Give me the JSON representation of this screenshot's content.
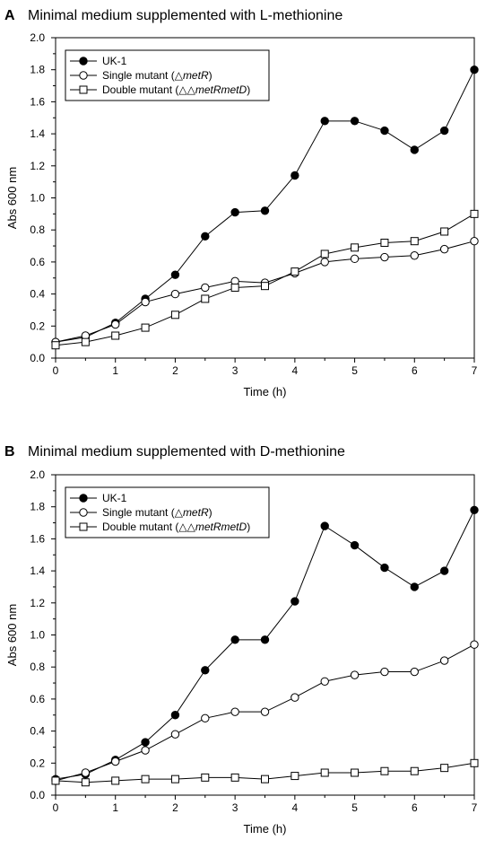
{
  "chart_data": [
    {
      "panel": "A",
      "type": "line",
      "title": "Minimal medium supplemented with L-methionine",
      "xlabel": "Time (h)",
      "ylabel": "Abs 600 nm",
      "xlim": [
        0,
        7
      ],
      "ylim": [
        0,
        2.0
      ],
      "x_ticks": [
        "0",
        "1",
        "2",
        "3",
        "4",
        "5",
        "6",
        "7"
      ],
      "y_ticks": [
        "0.0",
        "0.2",
        "0.4",
        "0.6",
        "0.8",
        "1.0",
        "1.2",
        "1.4",
        "1.6",
        "1.8",
        "2.0"
      ],
      "x": [
        0,
        0.5,
        1,
        1.5,
        2,
        2.5,
        3,
        3.5,
        4,
        4.5,
        5,
        5.5,
        6,
        6.5,
        7
      ],
      "legend_position": "top-left",
      "grid": false,
      "series": [
        {
          "legend_prefix": "UK-1",
          "legend_italic": "",
          "legend_suffix": "",
          "marker": "filled-circle",
          "values": [
            0.1,
            0.13,
            0.22,
            0.37,
            0.52,
            0.76,
            0.91,
            0.92,
            1.14,
            1.48,
            1.48,
            1.42,
            1.3,
            1.42,
            1.8
          ]
        },
        {
          "legend_prefix": "Single mutant (△",
          "legend_italic": "metR",
          "legend_suffix": ")",
          "marker": "open-circle",
          "values": [
            0.1,
            0.14,
            0.21,
            0.35,
            0.4,
            0.44,
            0.48,
            0.47,
            0.53,
            0.6,
            0.62,
            0.63,
            0.64,
            0.68,
            0.73
          ]
        },
        {
          "legend_prefix": "Double mutant (△△",
          "legend_italic": "metRmetD",
          "legend_suffix": ")",
          "marker": "open-square",
          "values": [
            0.08,
            0.1,
            0.14,
            0.19,
            0.27,
            0.37,
            0.44,
            0.45,
            0.54,
            0.65,
            0.69,
            0.72,
            0.73,
            0.79,
            0.9
          ]
        }
      ]
    },
    {
      "panel": "B",
      "type": "line",
      "title": "Minimal medium supplemented with D-methionine",
      "xlabel": "Time (h)",
      "ylabel": "Abs 600 nm",
      "xlim": [
        0,
        7
      ],
      "ylim": [
        0,
        2.0
      ],
      "x_ticks": [
        "0",
        "1",
        "2",
        "3",
        "4",
        "5",
        "6",
        "7"
      ],
      "y_ticks": [
        "0.0",
        "0.2",
        "0.4",
        "0.6",
        "0.8",
        "1.0",
        "1.2",
        "1.4",
        "1.6",
        "1.8",
        "2.0"
      ],
      "x": [
        0,
        0.5,
        1,
        1.5,
        2,
        2.5,
        3,
        3.5,
        4,
        4.5,
        5,
        5.5,
        6,
        6.5,
        7
      ],
      "legend_position": "top-left",
      "grid": false,
      "series": [
        {
          "legend_prefix": "UK-1",
          "legend_italic": "",
          "legend_suffix": "",
          "marker": "filled-circle",
          "values": [
            0.1,
            0.13,
            0.22,
            0.33,
            0.5,
            0.78,
            0.97,
            0.97,
            1.21,
            1.68,
            1.56,
            1.42,
            1.3,
            1.4,
            1.78
          ]
        },
        {
          "legend_prefix": "Single mutant (△",
          "legend_italic": "metR",
          "legend_suffix": ")",
          "marker": "open-circle",
          "values": [
            0.09,
            0.14,
            0.21,
            0.28,
            0.38,
            0.48,
            0.52,
            0.52,
            0.61,
            0.71,
            0.75,
            0.77,
            0.77,
            0.84,
            0.94
          ]
        },
        {
          "legend_prefix": "Double mutant (△△",
          "legend_italic": "metRmetD",
          "legend_suffix": ")",
          "marker": "open-square",
          "values": [
            0.09,
            0.08,
            0.09,
            0.1,
            0.1,
            0.11,
            0.11,
            0.1,
            0.12,
            0.14,
            0.14,
            0.15,
            0.15,
            0.17,
            0.2
          ]
        }
      ]
    }
  ]
}
